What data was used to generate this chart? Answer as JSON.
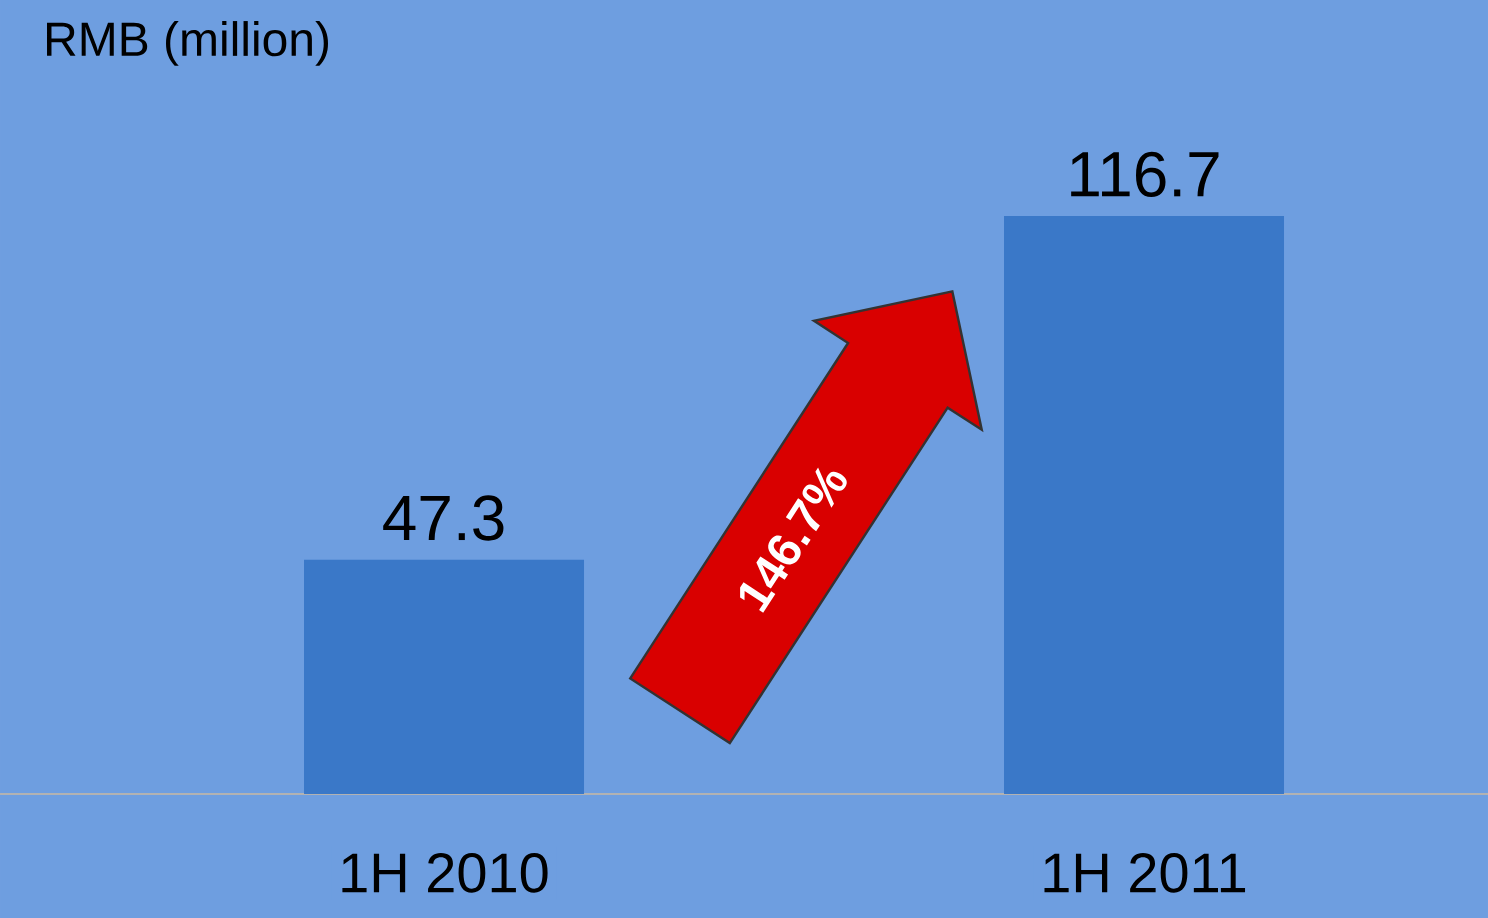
{
  "chart_data": {
    "type": "bar",
    "ylabel": "RMB (million)",
    "categories": [
      "1H 2010",
      "1H 2011"
    ],
    "values": [
      47.3,
      116.7
    ],
    "value_labels": [
      "47.3",
      "116.7"
    ],
    "color": "#3a78c8",
    "annotations": [
      "146.7%"
    ]
  }
}
